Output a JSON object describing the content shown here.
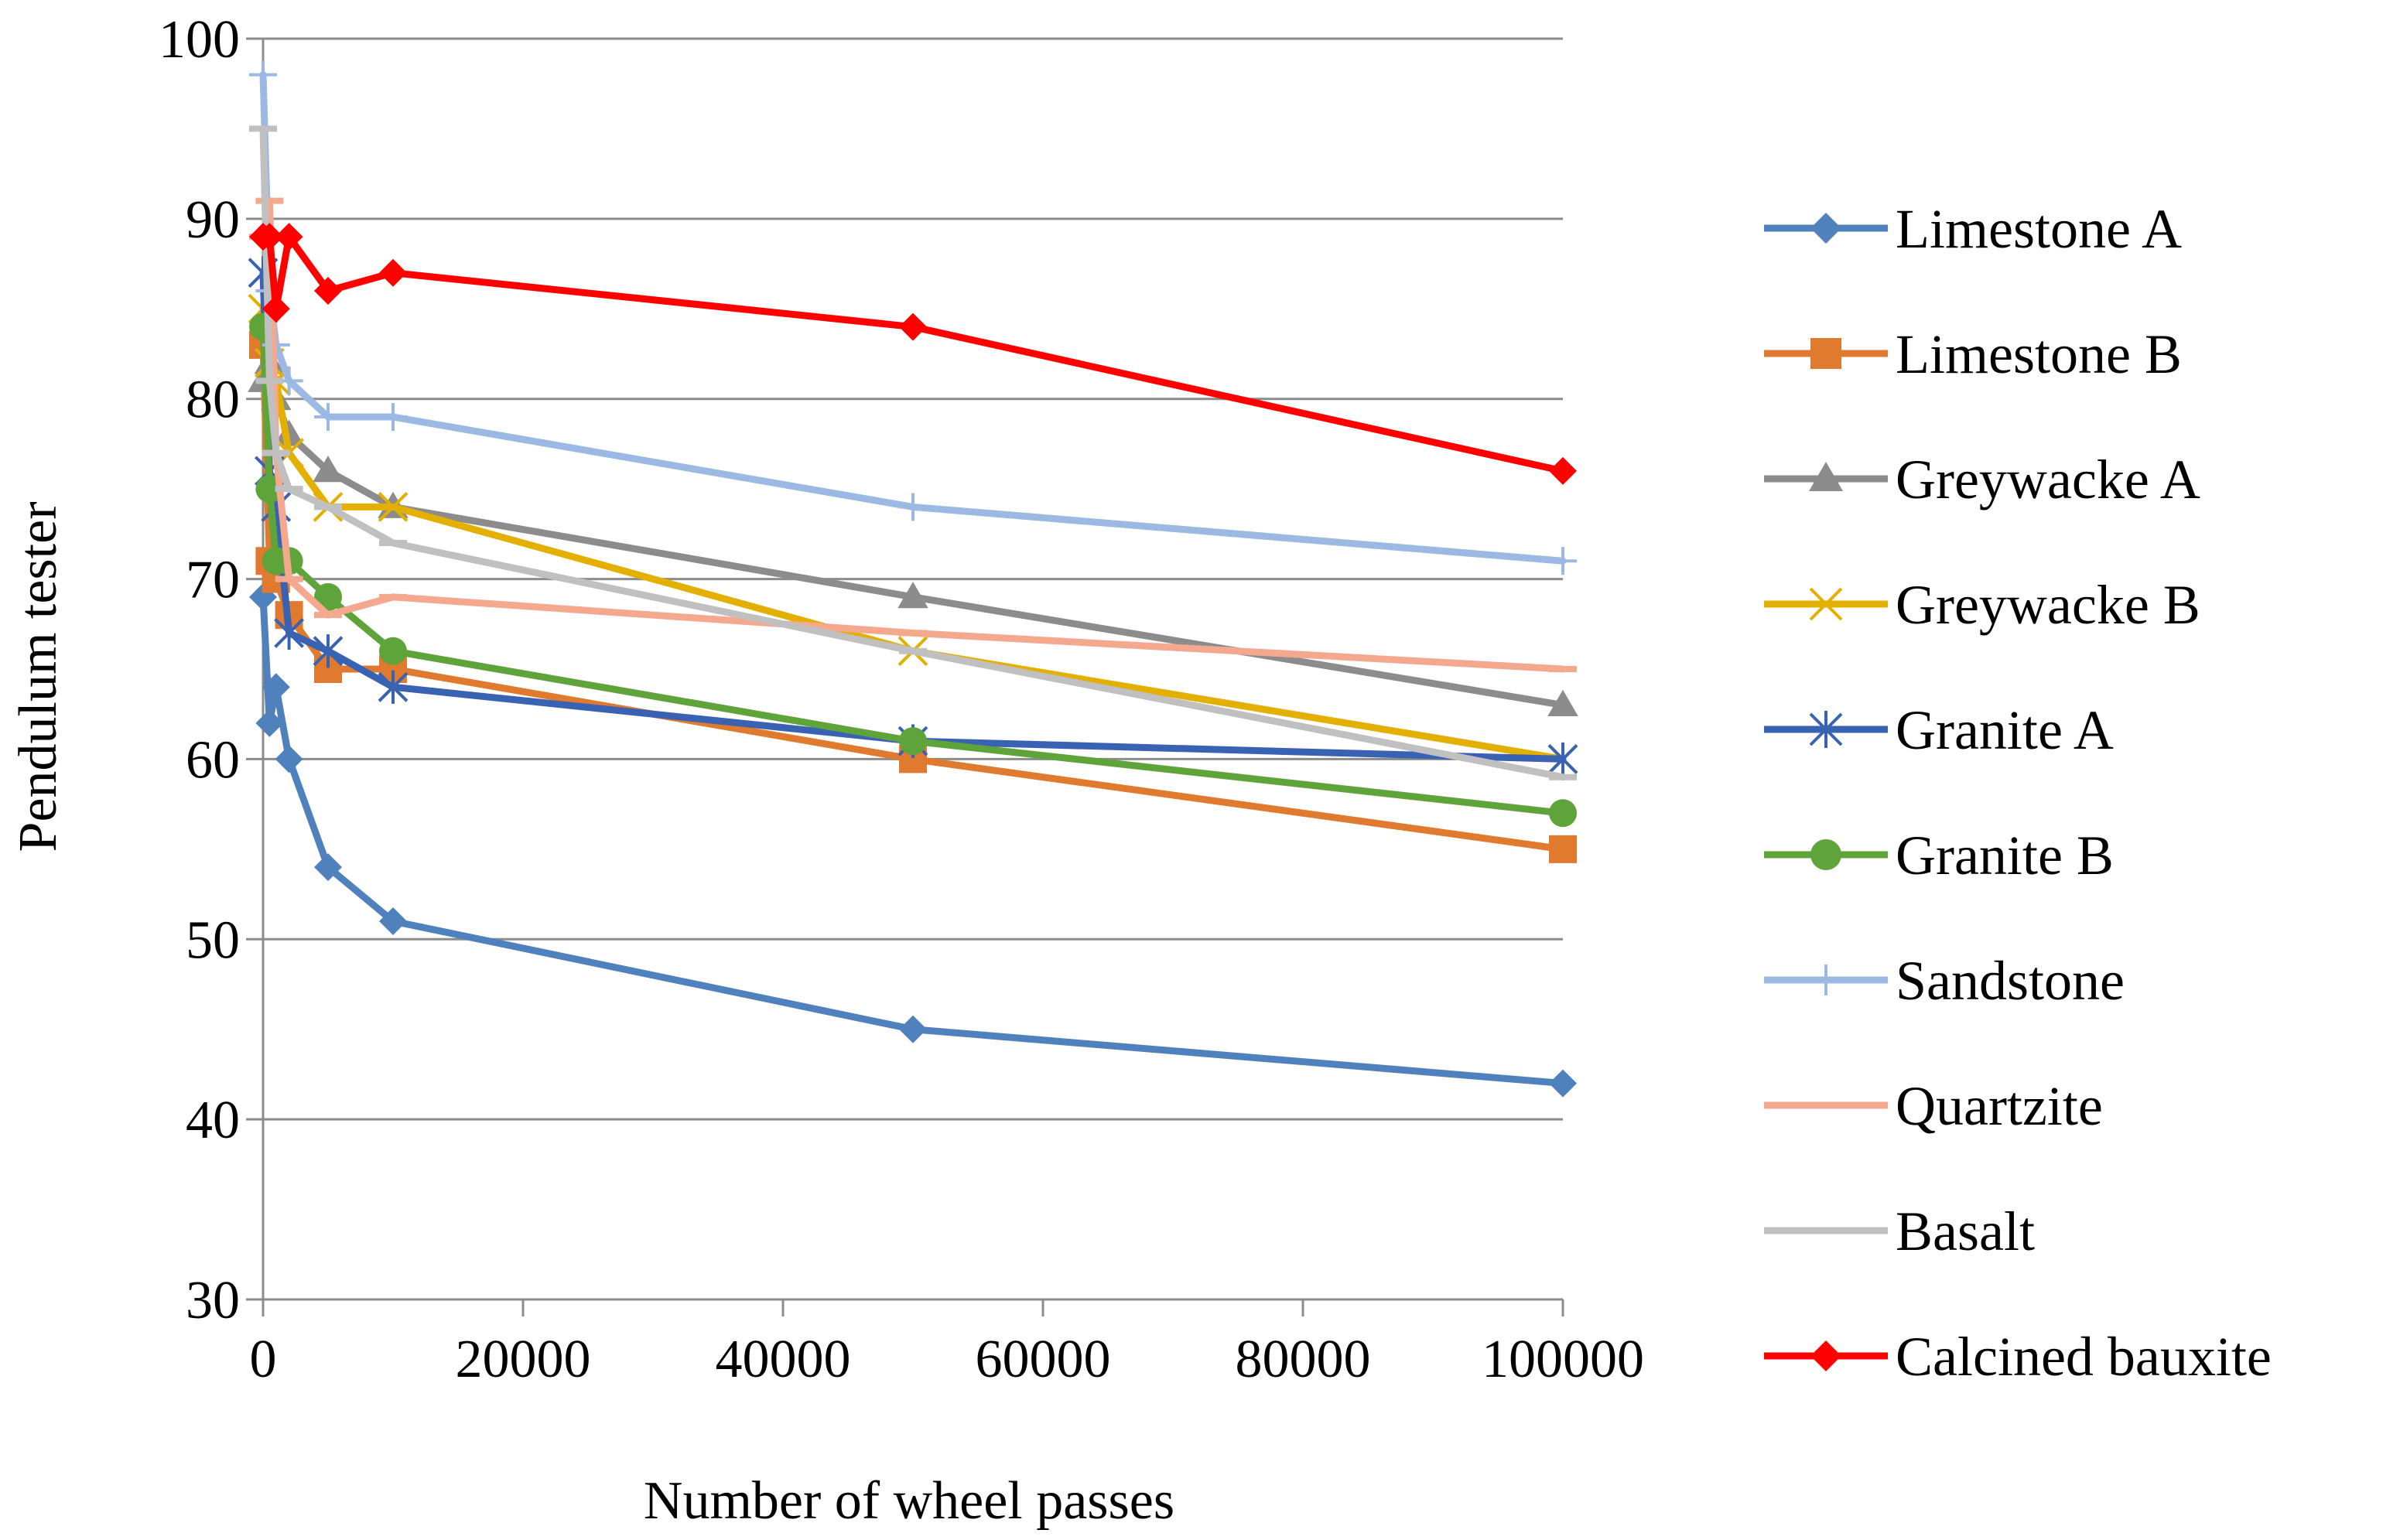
{
  "chart_data": {
    "type": "line",
    "title": "",
    "xlabel": "Number of wheel passes",
    "ylabel": "Pendulum tester",
    "xlim": [
      0,
      100000
    ],
    "ylim": [
      30,
      100
    ],
    "xticks": [
      0,
      20000,
      40000,
      60000,
      80000,
      100000
    ],
    "xtick_labels": [
      "0",
      "20000",
      "40000",
      "60000",
      "80000",
      "100000"
    ],
    "yticks": [
      30,
      40,
      50,
      60,
      70,
      80,
      90,
      100
    ],
    "ytick_labels": [
      "30",
      "40",
      "50",
      "60",
      "70",
      "80",
      "90",
      "100"
    ],
    "grid": "horizontal",
    "legend_position": "right",
    "series": [
      {
        "name": "Limestone A",
        "color": "#4f81bd",
        "marker": "diamond",
        "x": [
          0,
          500,
          1000,
          2000,
          5000,
          10000,
          50000,
          100000
        ],
        "y": [
          69,
          62,
          64,
          60,
          54,
          51,
          45,
          42
        ]
      },
      {
        "name": "Limestone B",
        "color": "#e07a2f",
        "marker": "square",
        "x": [
          0,
          500,
          1000,
          2000,
          5000,
          10000,
          50000,
          100000
        ],
        "y": [
          83,
          71,
          70,
          68,
          65,
          65,
          60,
          55
        ]
      },
      {
        "name": "Greywacke A",
        "color": "#8c8c8c",
        "marker": "triangle",
        "x": [
          0,
          500,
          1000,
          2000,
          5000,
          10000,
          50000,
          100000
        ],
        "y": [
          81,
          82,
          80,
          78,
          76,
          74,
          69,
          63
        ]
      },
      {
        "name": "Greywacke B",
        "color": "#e3b000",
        "marker": "x",
        "x": [
          0,
          500,
          1000,
          2000,
          5000,
          10000,
          50000,
          100000
        ],
        "y": [
          85,
          82,
          81,
          77,
          74,
          74,
          66,
          60
        ]
      },
      {
        "name": "Granite A",
        "color": "#3a62b3",
        "marker": "star",
        "x": [
          0,
          500,
          1000,
          2000,
          5000,
          10000,
          50000,
          100000
        ],
        "y": [
          87,
          76,
          74,
          67,
          66,
          64,
          61,
          60
        ]
      },
      {
        "name": "Granite B",
        "color": "#5fa33b",
        "marker": "circle",
        "x": [
          0,
          500,
          1000,
          2000,
          5000,
          10000,
          50000,
          100000
        ],
        "y": [
          84,
          75,
          71,
          71,
          69,
          66,
          61,
          57
        ]
      },
      {
        "name": "Sandstone",
        "color": "#9bb9e3",
        "marker": "plus",
        "x": [
          0,
          500,
          1000,
          2000,
          5000,
          10000,
          50000,
          100000
        ],
        "y": [
          98,
          86,
          83,
          81,
          79,
          79,
          74,
          71
        ]
      },
      {
        "name": "Quartzite",
        "color": "#f4a98e",
        "marker": "dash",
        "x": [
          0,
          500,
          1000,
          2000,
          5000,
          10000,
          50000,
          100000
        ],
        "y": [
          89,
          91,
          77,
          70,
          68,
          69,
          67,
          65
        ]
      },
      {
        "name": "Basalt",
        "color": "#c0c0c0",
        "marker": "dash",
        "x": [
          0,
          500,
          1000,
          2000,
          5000,
          10000,
          50000,
          100000
        ],
        "y": [
          95,
          81,
          77,
          75,
          74,
          72,
          66,
          59
        ]
      },
      {
        "name": "Calcined bauxite",
        "color": "#ff0000",
        "marker": "diamond",
        "x": [
          0,
          500,
          1000,
          2000,
          5000,
          10000,
          50000,
          100000
        ],
        "y": [
          89,
          89,
          85,
          89,
          86,
          87,
          84,
          76
        ]
      }
    ]
  }
}
